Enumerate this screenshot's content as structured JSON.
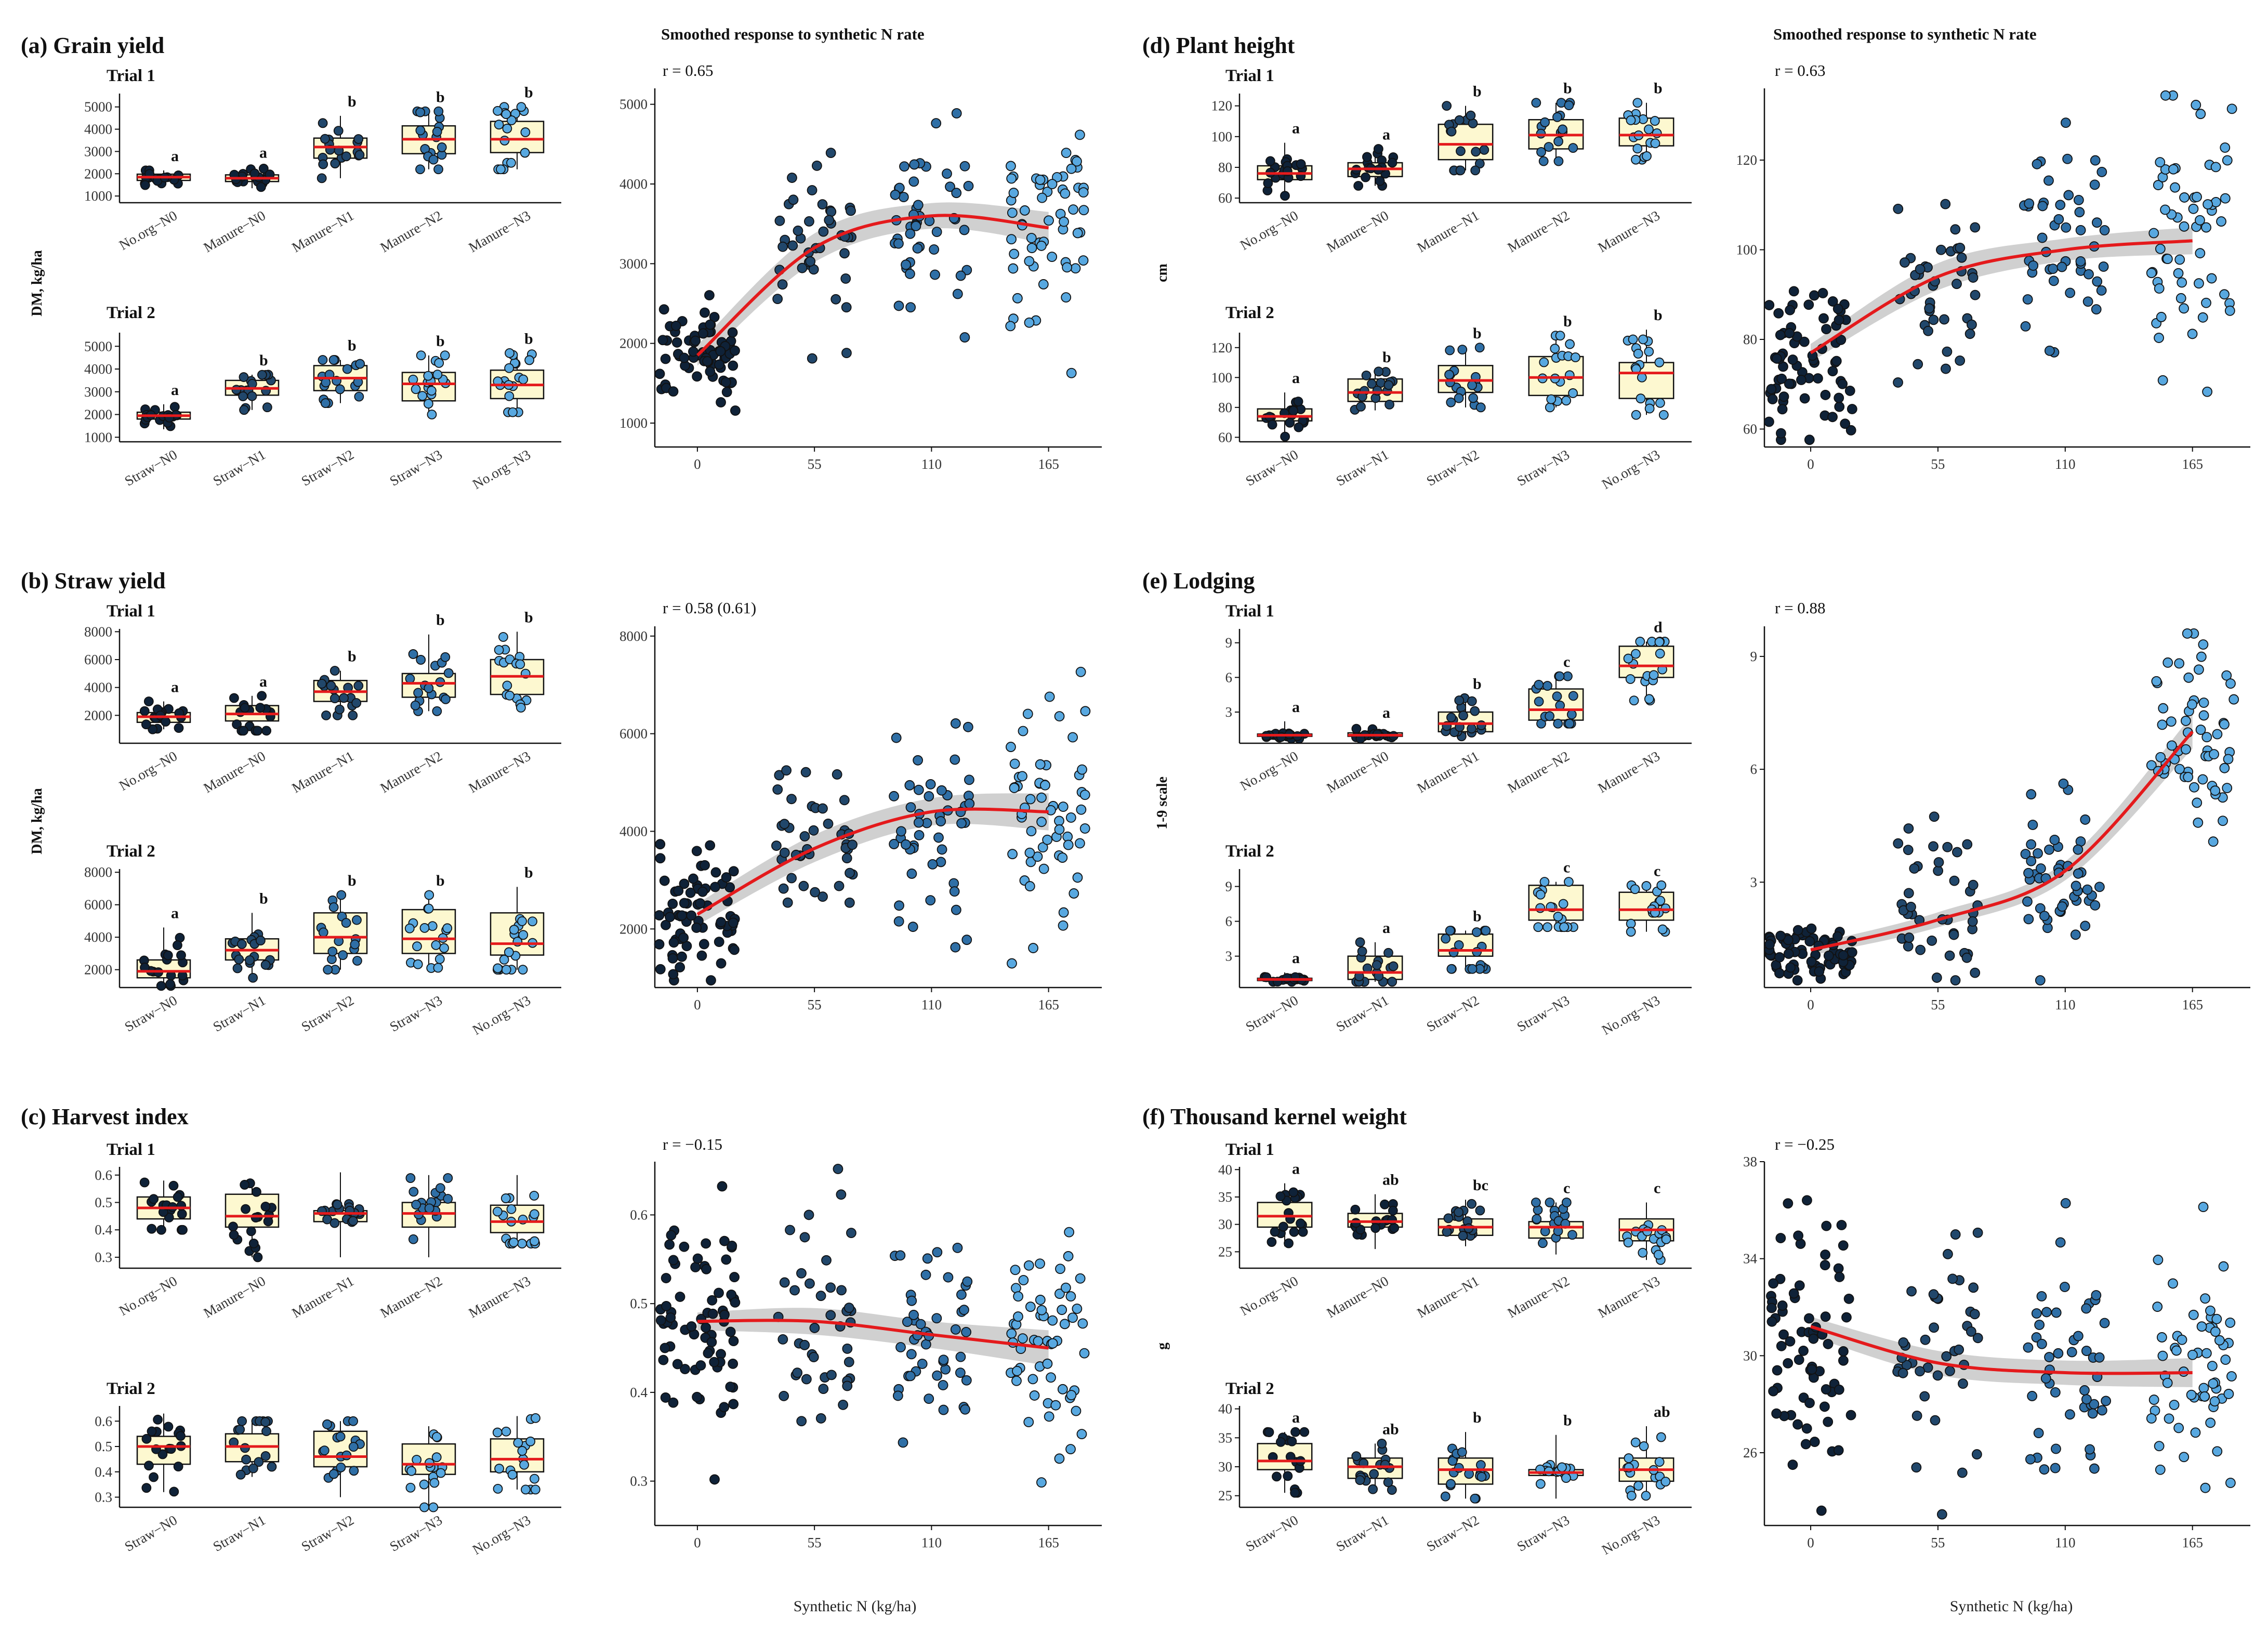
{
  "figure": {
    "smooth_title": "Smoothed response to synthetic N rate",
    "xlabel": "Synthetic N (kg/ha)"
  },
  "colors": {
    "box_fill": "#fdf8d0",
    "median_line": "#e41a1c",
    "smooth_line": "#e41a1c",
    "ci_band": "#c8c8c8",
    "n0": "#0f2238",
    "n55": "#21476b",
    "n110": "#2f6fa6",
    "n165": "#58a8e0"
  },
  "chart_data": [
    {
      "id": "a",
      "type": "box",
      "title": "(a) Grain yield",
      "ylabel": "DM, kg/ha",
      "trials": [
        {
          "name": "Trial 1",
          "ylim": [
            700,
            5600
          ],
          "yticks": [
            1000,
            2000,
            3000,
            4000,
            5000
          ],
          "categories": [
            "No.org−N0",
            "Manure−N0",
            "Manure−N1",
            "Manure−N2",
            "Manure−N3"
          ],
          "groups": [
            "n0",
            "n0",
            "n55",
            "n110",
            "n165"
          ],
          "q1": [
            1700,
            1650,
            2700,
            2900,
            2950
          ],
          "median": [
            1850,
            1800,
            3200,
            3550,
            3550
          ],
          "q3": [
            1980,
            1950,
            3600,
            4150,
            4350
          ],
          "wlo": [
            1450,
            1350,
            1800,
            2200,
            2200
          ],
          "whi": [
            2150,
            2300,
            4600,
            4800,
            5000
          ],
          "letters": [
            "a",
            "a",
            "b",
            "b",
            "b"
          ]
        },
        {
          "name": "Trial 2",
          "ylim": [
            800,
            5600
          ],
          "yticks": [
            1000,
            2000,
            3000,
            4000,
            5000
          ],
          "categories": [
            "Straw−N0",
            "Straw−N1",
            "Straw−N2",
            "Straw−N3",
            "No.org−N3"
          ],
          "groups": [
            "n0",
            "n55",
            "n110",
            "n165",
            "n165"
          ],
          "q1": [
            1800,
            2850,
            3050,
            2600,
            2700
          ],
          "median": [
            1950,
            3150,
            3600,
            3350,
            3300
          ],
          "q3": [
            2100,
            3500,
            4150,
            3850,
            3950
          ],
          "wlo": [
            1350,
            2200,
            2500,
            2000,
            2100
          ],
          "whi": [
            2450,
            3750,
            4400,
            4600,
            4700
          ],
          "letters": [
            "a",
            "b",
            "b",
            "b",
            "b"
          ]
        }
      ]
    },
    {
      "id": "a_s",
      "type": "scatter",
      "r_label": "r = 0.65",
      "ylim": [
        700,
        5200
      ],
      "yticks": [
        1000,
        2000,
        3000,
        4000,
        5000
      ],
      "x": [
        0,
        55,
        110,
        165
      ],
      "n": [
        72,
        42,
        48,
        60
      ],
      "center": [
        1850,
        3050,
        3500,
        3400
      ],
      "spread": [
        330,
        650,
        650,
        800
      ],
      "smooth": [
        1850,
        3200,
        3600,
        3450
      ],
      "ci": [
        130,
        180,
        160,
        200
      ]
    },
    {
      "id": "b",
      "type": "box",
      "title": "(b) Straw yield",
      "ylabel": "DM, kg/ha",
      "trials": [
        {
          "name": "Trial 1",
          "ylim": [
            0,
            8200
          ],
          "yticks": [
            2000,
            4000,
            6000,
            8000
          ],
          "categories": [
            "No.org−N0",
            "Manure−N0",
            "Manure−N1",
            "Manure−N2",
            "Manure−N3"
          ],
          "groups": [
            "n0",
            "n0",
            "n55",
            "n110",
            "n165"
          ],
          "q1": [
            1500,
            1600,
            3000,
            3300,
            3500
          ],
          "median": [
            1900,
            2100,
            3700,
            4300,
            4800
          ],
          "q3": [
            2200,
            2700,
            4500,
            5000,
            6000
          ],
          "wlo": [
            1000,
            900,
            2000,
            2300,
            2500
          ],
          "whi": [
            3000,
            3400,
            5200,
            7800,
            8000
          ],
          "letters": [
            "a",
            "a",
            "b",
            "b",
            "b"
          ]
        },
        {
          "name": "Trial 2",
          "ylim": [
            900,
            8200
          ],
          "yticks": [
            2000,
            4000,
            6000,
            8000
          ],
          "categories": [
            "Straw−N0",
            "Straw−N1",
            "Straw−N2",
            "Straw−N3",
            "No.org−N3"
          ],
          "groups": [
            "n0",
            "n55",
            "n110",
            "n165",
            "n165"
          ],
          "q1": [
            1500,
            2600,
            3000,
            3000,
            2900
          ],
          "median": [
            1900,
            3200,
            4000,
            3900,
            3600
          ],
          "q3": [
            2600,
            3900,
            5500,
            5700,
            5500
          ],
          "wlo": [
            1000,
            1500,
            2000,
            2100,
            2000
          ],
          "whi": [
            4600,
            5500,
            6600,
            6600,
            7100
          ],
          "letters": [
            "a",
            "b",
            "b",
            "b",
            "b"
          ]
        }
      ]
    },
    {
      "id": "b_s",
      "type": "scatter",
      "r_label": "r = 0.58 (0.61)",
      "ylim": [
        800,
        8200
      ],
      "yticks": [
        2000,
        4000,
        6000,
        8000
      ],
      "x": [
        0,
        55,
        110,
        165
      ],
      "n": [
        72,
        42,
        48,
        60
      ],
      "center": [
        2200,
        3500,
        4300,
        4300
      ],
      "spread": [
        750,
        900,
        1300,
        1500
      ],
      "smooth": [
        2300,
        3650,
        4400,
        4400
      ],
      "ci": [
        220,
        280,
        280,
        380
      ]
    },
    {
      "id": "c",
      "type": "box",
      "title": "(c) Harvest index",
      "ylabel": "",
      "trials": [
        {
          "name": "Trial 1",
          "ylim": [
            0.26,
            0.63
          ],
          "yticks": [
            0.3,
            0.4,
            0.5,
            0.6
          ],
          "decimals": 1,
          "categories": [
            "No.org−N0",
            "Manure−N0",
            "Manure−N1",
            "Manure−N2",
            "Manure−N3"
          ],
          "groups": [
            "n0",
            "n0",
            "n55",
            "n110",
            "n165"
          ],
          "q1": [
            0.44,
            0.41,
            0.43,
            0.41,
            0.39
          ],
          "median": [
            0.48,
            0.45,
            0.46,
            0.46,
            0.43
          ],
          "q3": [
            0.52,
            0.53,
            0.47,
            0.5,
            0.49
          ],
          "wlo": [
            0.4,
            0.3,
            0.3,
            0.3,
            0.35
          ],
          "whi": [
            0.58,
            0.57,
            0.61,
            0.6,
            0.6
          ],
          "letters": [
            "",
            "",
            "",
            "",
            ""
          ]
        },
        {
          "name": "Trial 2",
          "ylim": [
            0.26,
            0.66
          ],
          "yticks": [
            0.3,
            0.4,
            0.5,
            0.6
          ],
          "decimals": 1,
          "categories": [
            "Straw−N0",
            "Straw−N1",
            "Straw−N2",
            "Straw−N3",
            "No.org−N3"
          ],
          "groups": [
            "n0",
            "n55",
            "n110",
            "n165",
            "n165"
          ],
          "q1": [
            0.43,
            0.44,
            0.42,
            0.39,
            0.4
          ],
          "median": [
            0.5,
            0.5,
            0.46,
            0.43,
            0.45
          ],
          "q3": [
            0.54,
            0.55,
            0.56,
            0.51,
            0.53
          ],
          "wlo": [
            0.32,
            0.38,
            0.3,
            0.26,
            0.33
          ],
          "whi": [
            0.63,
            0.6,
            0.6,
            0.58,
            0.62
          ],
          "letters": [
            "",
            "",
            "",
            "",
            ""
          ]
        }
      ]
    },
    {
      "id": "c_s",
      "type": "scatter",
      "r_label": "r = −0.15",
      "ylim": [
        0.25,
        0.66
      ],
      "yticks": [
        0.3,
        0.4,
        0.5,
        0.6
      ],
      "decimals": 1,
      "x": [
        0,
        55,
        110,
        165
      ],
      "n": [
        72,
        42,
        48,
        60
      ],
      "center": [
        0.48,
        0.48,
        0.47,
        0.45
      ],
      "spread": [
        0.07,
        0.07,
        0.07,
        0.07
      ],
      "smooth": [
        0.48,
        0.48,
        0.465,
        0.45
      ],
      "ci": [
        0.01,
        0.015,
        0.015,
        0.02
      ]
    },
    {
      "id": "d",
      "type": "box",
      "title": "(d) Plant height",
      "ylabel": "cm",
      "trials": [
        {
          "name": "Trial 1",
          "ylim": [
            57,
            128
          ],
          "yticks": [
            60,
            80,
            100,
            120
          ],
          "categories": [
            "No.org−N0",
            "Manure−N0",
            "Manure−N1",
            "Manure−N2",
            "Manure−N3"
          ],
          "groups": [
            "n0",
            "n0",
            "n55",
            "n110",
            "n165"
          ],
          "q1": [
            72,
            74,
            85,
            92,
            94
          ],
          "median": [
            76,
            79,
            95,
            101,
            101
          ],
          "q3": [
            81,
            83,
            108,
            111,
            112
          ],
          "wlo": [
            60,
            68,
            78,
            84,
            85
          ],
          "whi": [
            96,
            92,
            120,
            122,
            122
          ],
          "letters": [
            "a",
            "a",
            "b",
            "b",
            "b"
          ]
        },
        {
          "name": "Trial 2",
          "ylim": [
            57,
            130
          ],
          "yticks": [
            60,
            80,
            100,
            120
          ],
          "categories": [
            "Straw−N0",
            "Straw−N1",
            "Straw−N2",
            "Straw−N3",
            "No.org−N3"
          ],
          "groups": [
            "n0",
            "n55",
            "n110",
            "n165",
            "n165"
          ],
          "q1": [
            71,
            84,
            90,
            88,
            86
          ],
          "median": [
            74,
            90,
            98,
            100,
            103
          ],
          "q3": [
            79,
            99,
            108,
            114,
            110
          ],
          "wlo": [
            60,
            78,
            80,
            80,
            75
          ],
          "whi": [
            90,
            104,
            120,
            128,
            132
          ],
          "letters": [
            "a",
            "b",
            "b",
            "b",
            "b"
          ]
        }
      ]
    },
    {
      "id": "d_s",
      "type": "scatter",
      "r_label": "r = 0.63",
      "ylim": [
        56,
        136
      ],
      "yticks": [
        60,
        80,
        100,
        120
      ],
      "x": [
        0,
        55,
        110,
        165
      ],
      "n": [
        72,
        42,
        48,
        60
      ],
      "center": [
        76,
        93,
        101,
        102
      ],
      "spread": [
        9,
        11,
        12,
        15
      ],
      "smooth": [
        77,
        94,
        100,
        102
      ],
      "ci": [
        2,
        3,
        2.5,
        3
      ]
    },
    {
      "id": "e",
      "type": "box",
      "title": "(e) Lodging",
      "ylabel": "1-9 scale",
      "trials": [
        {
          "name": "Trial 1",
          "ylim": [
            0.3,
            10.2
          ],
          "yticks": [
            3,
            6,
            9
          ],
          "categories": [
            "No.org−N0",
            "Manure−N0",
            "Manure−N1",
            "Manure−N2",
            "Manure−N3"
          ],
          "groups": [
            "n0",
            "n0",
            "n55",
            "n110",
            "n165"
          ],
          "q1": [
            0.9,
            0.9,
            1.3,
            2.3,
            6.0
          ],
          "median": [
            1.0,
            1.0,
            2.0,
            3.2,
            7.0
          ],
          "q3": [
            1.1,
            1.2,
            3.0,
            5.0,
            8.7
          ],
          "wlo": [
            0.7,
            0.7,
            0.9,
            2.0,
            4.0
          ],
          "whi": [
            2.2,
            1.7,
            4.2,
            6.1,
            9.1
          ],
          "letters": [
            "a",
            "a",
            "b",
            "c",
            "d"
          ]
        },
        {
          "name": "Trial 2",
          "ylim": [
            0.3,
            10.5
          ],
          "yticks": [
            3,
            6,
            9
          ],
          "categories": [
            "Straw−N0",
            "Straw−N1",
            "Straw−N2",
            "Straw−N3",
            "No.org−N3"
          ],
          "groups": [
            "n0",
            "n55",
            "n110",
            "n165",
            "n165"
          ],
          "q1": [
            0.9,
            1.0,
            3.0,
            6.1,
            6.1
          ],
          "median": [
            1.0,
            1.6,
            3.5,
            7.0,
            7.0
          ],
          "q3": [
            1.1,
            3.0,
            4.9,
            9.1,
            8.5
          ],
          "wlo": [
            0.8,
            0.8,
            1.9,
            5.5,
            5.1
          ],
          "whi": [
            1.6,
            4.2,
            5.2,
            9.4,
            9.1
          ],
          "letters": [
            "a",
            "a",
            "b",
            "c",
            "c"
          ]
        }
      ]
    },
    {
      "id": "e_s",
      "type": "scatter",
      "r_label": "r = 0.88",
      "ylim": [
        0.2,
        9.8
      ],
      "yticks": [
        3,
        6,
        9
      ],
      "x": [
        0,
        55,
        110,
        165
      ],
      "n": [
        72,
        42,
        48,
        60
      ],
      "center": [
        1.1,
        2.2,
        3.6,
        7.0
      ],
      "spread": [
        0.4,
        1.0,
        1.2,
        1.6
      ],
      "smooth": [
        1.2,
        2.0,
        3.3,
        7.0
      ],
      "ci": [
        0.15,
        0.2,
        0.25,
        0.45
      ]
    },
    {
      "id": "f",
      "type": "box",
      "title": "(f) Thousand kernel weight",
      "ylabel": "g",
      "trials": [
        {
          "name": "Trial 1",
          "ylim": [
            22,
            40.5
          ],
          "yticks": [
            25,
            30,
            35,
            40
          ],
          "categories": [
            "No.org−N0",
            "Manure−N0",
            "Manure−N1",
            "Manure−N2",
            "Manure−N3"
          ],
          "groups": [
            "n0",
            "n0",
            "n55",
            "n110",
            "n165"
          ],
          "q1": [
            29.5,
            29.5,
            28.0,
            27.5,
            27.0
          ],
          "median": [
            31.5,
            30.5,
            29.5,
            29.5,
            29.0
          ],
          "q3": [
            34.0,
            32.0,
            31.0,
            30.5,
            31.0
          ],
          "wlo": [
            26.0,
            25.5,
            26.0,
            24.5,
            23.5
          ],
          "whi": [
            37.5,
            35.5,
            34.5,
            34.0,
            34.0
          ],
          "letters": [
            "a",
            "ab",
            "bc",
            "c",
            "c"
          ]
        },
        {
          "name": "Trial 2",
          "ylim": [
            23,
            40.5
          ],
          "yticks": [
            25,
            30,
            35,
            40
          ],
          "categories": [
            "Straw−N0",
            "Straw−N1",
            "Straw−N2",
            "Straw−N3",
            "No.org−N3"
          ],
          "groups": [
            "n0",
            "n55",
            "n110",
            "n165",
            "n165"
          ],
          "q1": [
            29.5,
            28.0,
            27.0,
            28.5,
            27.5
          ],
          "median": [
            31.0,
            30.0,
            29.5,
            29.0,
            29.5
          ],
          "q3": [
            34.0,
            31.5,
            31.5,
            29.5,
            31.5
          ],
          "wlo": [
            25.5,
            26.0,
            24.5,
            24.5,
            25.0
          ],
          "whi": [
            36.0,
            34.0,
            36.0,
            35.5,
            37.0
          ],
          "letters": [
            "a",
            "ab",
            "b",
            "b",
            "ab"
          ]
        }
      ]
    },
    {
      "id": "f_s",
      "type": "scatter",
      "r_label": "r = −0.25",
      "ylim": [
        23,
        38
      ],
      "yticks": [
        26,
        30,
        34,
        38
      ],
      "x": [
        0,
        55,
        110,
        165
      ],
      "n": [
        72,
        42,
        48,
        60
      ],
      "center": [
        31.0,
        29.8,
        29.2,
        29.2
      ],
      "spread": [
        2.8,
        2.6,
        2.8,
        2.8
      ],
      "smooth": [
        31.2,
        29.7,
        29.3,
        29.3
      ],
      "ci": [
        0.4,
        0.5,
        0.5,
        0.6
      ]
    }
  ]
}
